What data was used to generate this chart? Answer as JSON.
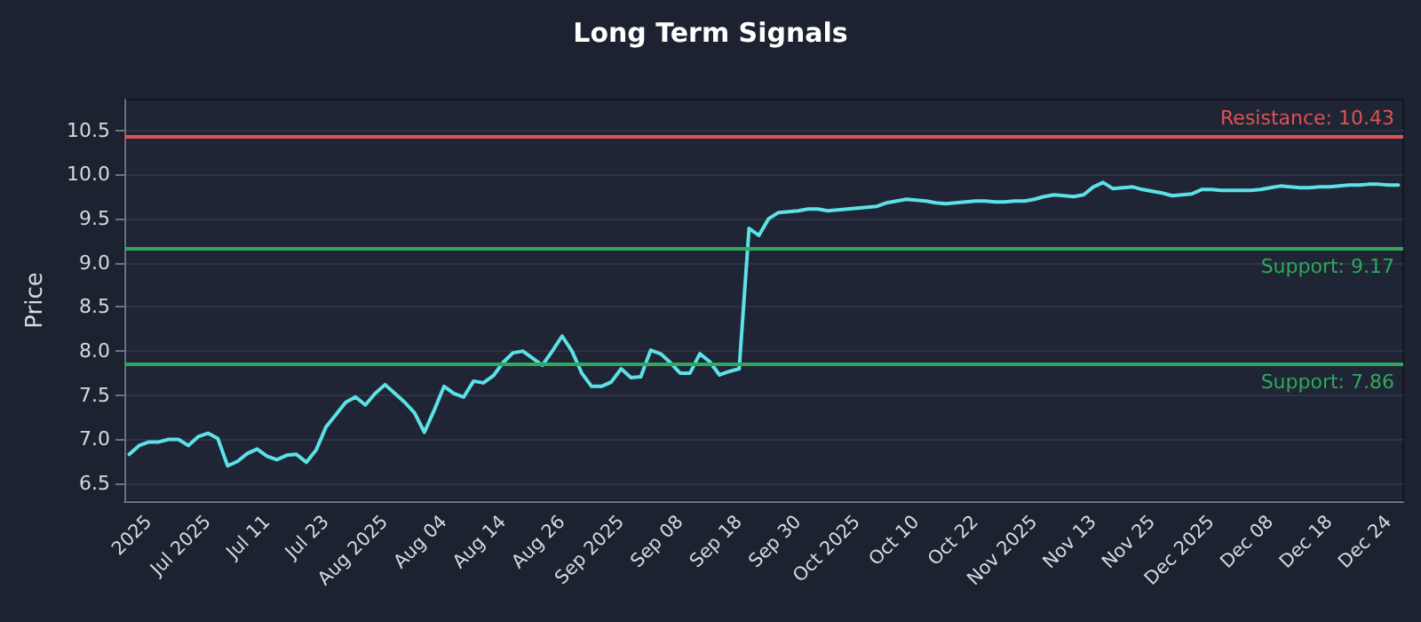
{
  "chart_data": {
    "type": "line",
    "title": "Long Term Signals",
    "ylabel": "Price",
    "categories": [
      null,
      null,
      "2025",
      null,
      null,
      null,
      null,
      null,
      "Jul 2025",
      null,
      null,
      null,
      null,
      null,
      "Jul 11",
      null,
      null,
      null,
      null,
      null,
      "Jul 23",
      null,
      null,
      null,
      null,
      null,
      "Aug 2025",
      null,
      null,
      null,
      null,
      null,
      "Aug 04",
      null,
      null,
      null,
      null,
      null,
      "Aug 14",
      null,
      null,
      null,
      null,
      null,
      "Aug 26",
      null,
      null,
      null,
      null,
      null,
      "Sep 2025",
      null,
      null,
      null,
      null,
      null,
      "Sep 08",
      null,
      null,
      null,
      null,
      null,
      "Sep 18",
      null,
      null,
      null,
      null,
      null,
      "Sep 30",
      null,
      null,
      null,
      null,
      null,
      "Oct 2025",
      null,
      null,
      null,
      null,
      null,
      "Oct 10",
      null,
      null,
      null,
      null,
      null,
      "Oct 22",
      null,
      null,
      null,
      null,
      null,
      "Nov 2025",
      null,
      null,
      null,
      null,
      null,
      "Nov 13",
      null,
      null,
      null,
      null,
      null,
      "Nov 25",
      null,
      null,
      null,
      null,
      null,
      "Dec 2025",
      null,
      null,
      null,
      null,
      null,
      "Dec 08",
      null,
      null,
      null,
      null,
      null,
      "Dec 18",
      null,
      null,
      null,
      null,
      null,
      "Dec 24",
      null
    ],
    "series": [
      {
        "color": "#5ce1e6",
        "values": [
          6.83,
          6.93,
          6.97,
          6.97,
          7.0,
          7.0,
          6.93,
          7.03,
          7.07,
          7.01,
          6.7,
          6.75,
          6.84,
          6.89,
          6.81,
          6.77,
          6.82,
          6.83,
          6.74,
          6.88,
          7.14,
          7.28,
          7.42,
          7.48,
          7.39,
          7.52,
          7.62,
          7.52,
          7.42,
          7.3,
          7.08,
          7.33,
          7.6,
          7.52,
          7.48,
          7.66,
          7.64,
          7.72,
          7.87,
          7.98,
          8.0,
          7.92,
          7.84,
          8.0,
          8.17,
          8.0,
          7.75,
          7.6,
          7.6,
          7.65,
          7.8,
          7.7,
          7.71,
          8.01,
          7.97,
          7.87,
          7.75,
          7.75,
          7.97,
          7.88,
          7.73,
          7.77,
          7.8,
          9.39,
          9.31,
          9.5,
          9.57,
          9.58,
          9.59,
          9.61,
          9.61,
          9.59,
          9.6,
          9.61,
          9.62,
          9.63,
          9.64,
          9.68,
          9.7,
          9.72,
          9.71,
          9.7,
          9.68,
          9.67,
          9.68,
          9.69,
          9.7,
          9.7,
          9.69,
          9.69,
          9.7,
          9.7,
          9.72,
          9.75,
          9.77,
          9.76,
          9.75,
          9.77,
          9.86,
          9.91,
          9.84,
          9.85,
          9.86,
          9.83,
          9.81,
          9.79,
          9.76,
          9.77,
          9.78,
          9.83,
          9.83,
          9.82,
          9.82,
          9.82,
          9.82,
          9.83,
          9.85,
          9.87,
          9.86,
          9.85,
          9.85,
          9.86,
          9.86,
          9.87,
          9.88,
          9.88,
          9.89,
          9.89,
          9.88,
          9.88
        ]
      }
    ],
    "ylim": [
      6.3,
      10.85
    ],
    "yticks": [
      {
        "value": 6.5,
        "label": "6.5"
      },
      {
        "value": 7,
        "label": "7.0"
      },
      {
        "value": 7.5,
        "label": "7.5"
      },
      {
        "value": 8,
        "label": "8.0"
      },
      {
        "value": 8.5,
        "label": "8.5"
      },
      {
        "value": 9,
        "label": "9.0"
      },
      {
        "value": 9.5,
        "label": "9.5"
      },
      {
        "value": 10,
        "label": "10.0"
      },
      {
        "value": 10.5,
        "label": "10.5"
      }
    ],
    "ref_lines": [
      {
        "axis": "y",
        "value": 10.43,
        "label": "Resistance: 10.43",
        "color": "#e05252"
      },
      {
        "axis": "y",
        "value": 9.17,
        "label": "Support: 9.17",
        "color": "#2ea85a"
      },
      {
        "axis": "y",
        "value": 7.86,
        "label": "Support: 7.86",
        "color": "#2ea85a"
      }
    ],
    "grid": "y",
    "marker": "none",
    "line_style": "solid"
  }
}
